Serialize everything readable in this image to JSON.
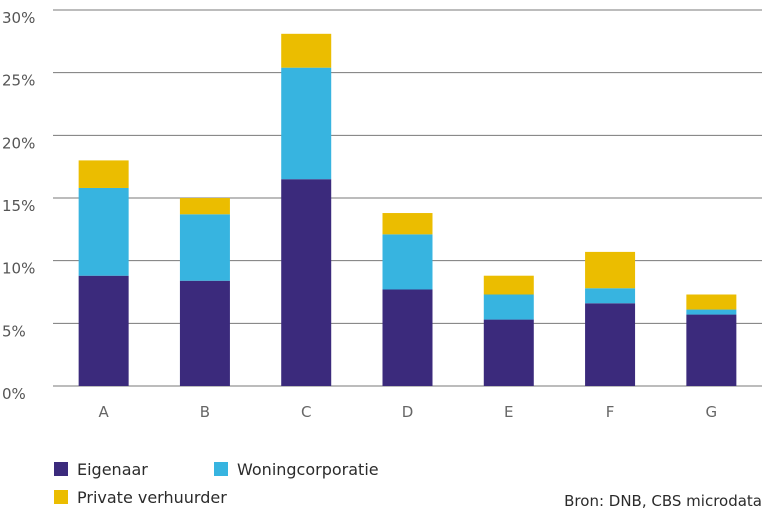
{
  "chart_data": {
    "type": "bar",
    "stacked": true,
    "categories": [
      "A",
      "B",
      "C",
      "D",
      "E",
      "F",
      "G"
    ],
    "series": [
      {
        "name": "Eigenaar",
        "color": "#3b2a7c",
        "values": [
          8.8,
          8.4,
          16.5,
          7.7,
          5.3,
          6.6,
          5.7
        ]
      },
      {
        "name": "Woningcorporatie",
        "color": "#37b4e0",
        "values": [
          7.0,
          5.3,
          8.9,
          4.4,
          2.0,
          1.2,
          0.4
        ]
      },
      {
        "name": "Private verhuurder",
        "color": "#ebbd00",
        "values": [
          2.2,
          1.3,
          2.7,
          1.7,
          1.5,
          2.9,
          1.2
        ]
      }
    ],
    "y_ticks": [
      "0%",
      "5%",
      "10%",
      "15%",
      "20%",
      "25%",
      "30%"
    ],
    "ylim": [
      0,
      30
    ],
    "grid": true,
    "legend_position": "bottom-left",
    "source": "Bron: DNB, CBS microdata"
  }
}
